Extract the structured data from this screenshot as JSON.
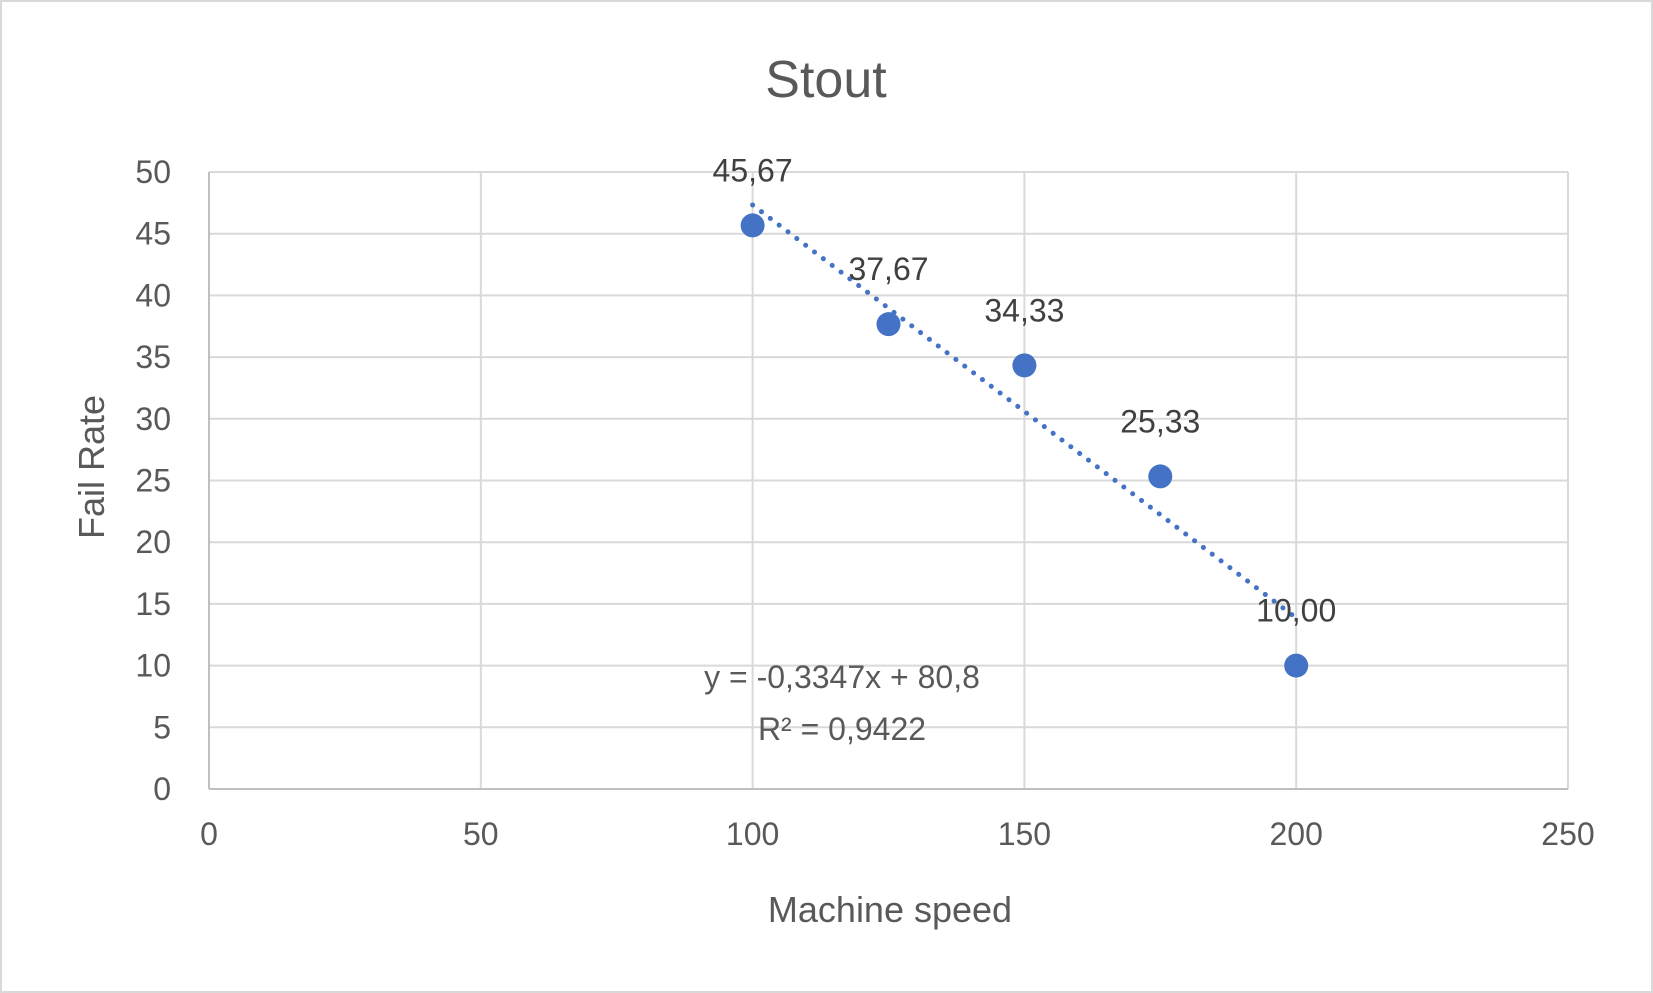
{
  "chart_data": {
    "type": "scatter",
    "title": "Stout",
    "xlabel": "Machine speed",
    "ylabel": "Fail Rate",
    "xlim": [
      0,
      250
    ],
    "ylim": [
      0,
      50
    ],
    "xticks": [
      0,
      50,
      100,
      150,
      200,
      250
    ],
    "yticks": [
      0,
      5,
      10,
      15,
      20,
      25,
      30,
      35,
      40,
      45,
      50
    ],
    "grid": true,
    "series": [
      {
        "x": [
          100,
          125,
          150,
          175,
          200
        ],
        "y": [
          45.67,
          37.67,
          34.33,
          25.33,
          10.0
        ],
        "labels": [
          "45,67",
          "37,67",
          "34,33",
          "25,33",
          "10,00"
        ],
        "color": "#4472c4"
      }
    ],
    "trendline": {
      "type": "linear",
      "slope": -0.3347,
      "intercept": 80.8,
      "x_range": [
        100,
        200
      ],
      "style": "dotted",
      "color": "#4472c4",
      "equation": "y = -0,3347x + 80,8",
      "r_squared": "R² = 0,9422"
    }
  }
}
